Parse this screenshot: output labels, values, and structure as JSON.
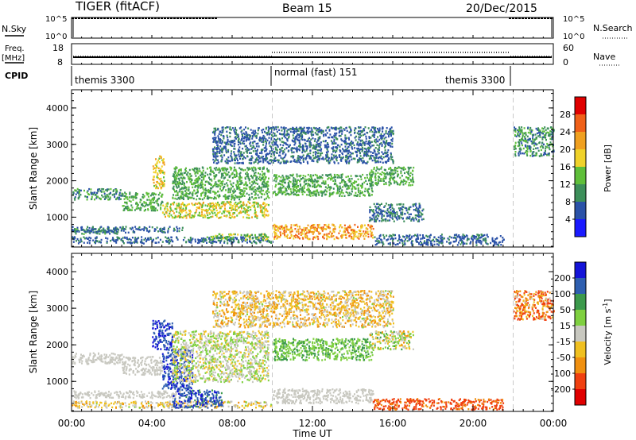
{
  "header": {
    "title": "TIGER (fitACF)",
    "beam": "Beam 15",
    "date": "20/Dec/2015"
  },
  "top_panels": {
    "nsky": {
      "label": "N.Sky",
      "ticks": [
        "10^5",
        "10^0"
      ],
      "right_ticks": [
        "10^5",
        "10^0"
      ],
      "right_label": "N.Search"
    },
    "freq": {
      "label": "Freq.",
      "unit": "[MHz]",
      "ticks": [
        "18",
        "8"
      ],
      "right_ticks": [
        "60",
        "0"
      ],
      "right_label": "Nave"
    },
    "cpid": {
      "label": "CPID",
      "modes": [
        {
          "name": "themis 3300",
          "start": 0,
          "end": 10
        },
        {
          "name": "normal (fast) 151",
          "start": 10,
          "end": 22
        },
        {
          "name": "themis 3300",
          "start": 22,
          "end": 24
        }
      ]
    }
  },
  "x_axis": {
    "ticks": [
      "00:00",
      "04:00",
      "08:00",
      "12:00",
      "16:00",
      "20:00",
      "00:00"
    ],
    "label": "Time UT"
  },
  "colorbars": {
    "power": {
      "label": "Power [dB]",
      "ticks": [
        "4",
        "8",
        "12",
        "16",
        "20",
        "24",
        "28"
      ],
      "colors": [
        "#1a1aff",
        "#2b52a8",
        "#3d8f5a",
        "#5fbf3a",
        "#f0d22a",
        "#f0a020",
        "#f06018",
        "#e00000"
      ]
    },
    "velocity": {
      "label_prefix": "Velocity [m s",
      "label_sup": "-1",
      "label_suffix": "]",
      "ticks": [
        "200",
        "100",
        "50",
        "15",
        "-15",
        "-50",
        "-100",
        "-200"
      ],
      "colors": [
        "#1414d8",
        "#2e5fb0",
        "#3c9a4c",
        "#7fd040",
        "#c8c8c0",
        "#f0c020",
        "#f09010",
        "#f04010",
        "#e00000"
      ]
    }
  },
  "chart_data": [
    {
      "type": "heatmap",
      "title": "Power",
      "ylabel": "Slant Range [km]",
      "xlabel": "Time UT",
      "x_range_hours": [
        0,
        24
      ],
      "ylim": [
        180,
        4500
      ],
      "yticks": [
        1000,
        2000,
        3000,
        4000
      ],
      "colorbar_ticks": [
        4,
        8,
        12,
        16,
        20,
        24,
        28
      ],
      "mode_change_lines_hours": [
        10,
        22
      ],
      "scatter_bands": [
        {
          "t_start": 0.0,
          "t_end": 10.0,
          "r_start": 300,
          "r_end": 480,
          "power": [
            4,
            10
          ]
        },
        {
          "t_start": 0.0,
          "t_end": 2.3,
          "r_start": 560,
          "r_end": 740,
          "power": [
            6,
            14
          ]
        },
        {
          "t_start": 0.0,
          "t_end": 5.5,
          "r_start": 600,
          "r_end": 760,
          "power": [
            4,
            10
          ]
        },
        {
          "t_start": 0.0,
          "t_end": 2.5,
          "r_start": 1500,
          "r_end": 1800,
          "power": [
            6,
            14
          ]
        },
        {
          "t_start": 2.5,
          "t_end": 4.5,
          "r_start": 1200,
          "r_end": 1700,
          "power": [
            8,
            16
          ]
        },
        {
          "t_start": 4.0,
          "t_end": 4.6,
          "r_start": 1800,
          "r_end": 2700,
          "power": [
            14,
            24
          ]
        },
        {
          "t_start": 4.5,
          "t_end": 9.8,
          "r_start": 1000,
          "r_end": 1450,
          "power": [
            12,
            22
          ]
        },
        {
          "t_start": 5.0,
          "t_end": 9.8,
          "r_start": 1500,
          "r_end": 2400,
          "power": [
            8,
            16
          ]
        },
        {
          "t_start": 6.5,
          "t_end": 9.8,
          "r_start": 400,
          "r_end": 560,
          "power": [
            10,
            18
          ]
        },
        {
          "t_start": 10.0,
          "t_end": 15.0,
          "r_start": 1600,
          "r_end": 2200,
          "power": [
            8,
            16
          ]
        },
        {
          "t_start": 14.8,
          "t_end": 17.0,
          "r_start": 1900,
          "r_end": 2400,
          "power": [
            8,
            16
          ]
        },
        {
          "t_start": 10.0,
          "t_end": 15.0,
          "r_start": 420,
          "r_end": 820,
          "power": [
            16,
            28
          ]
        },
        {
          "t_start": 14.8,
          "t_end": 17.5,
          "r_start": 900,
          "r_end": 1400,
          "power": [
            4,
            12
          ]
        },
        {
          "t_start": 7.0,
          "t_end": 16.0,
          "r_start": 2500,
          "r_end": 3500,
          "power": [
            4,
            10
          ]
        },
        {
          "t_start": 15.0,
          "t_end": 21.5,
          "r_start": 250,
          "r_end": 550,
          "power": [
            4,
            10
          ]
        },
        {
          "t_start": 22.0,
          "t_end": 24.0,
          "r_start": 2700,
          "r_end": 3500,
          "power": [
            6,
            14
          ]
        }
      ]
    },
    {
      "type": "heatmap",
      "title": "Velocity",
      "ylabel": "Slant Range [km]",
      "xlabel": "Time UT",
      "x_range_hours": [
        0,
        24
      ],
      "ylim": [
        180,
        4500
      ],
      "yticks": [
        1000,
        2000,
        3000,
        4000
      ],
      "colorbar_ticks": [
        200,
        100,
        50,
        15,
        -15,
        -50,
        -100,
        -200
      ],
      "mode_change_lines_hours": [
        10,
        22
      ],
      "scatter_bands": [
        {
          "t_start": 0.0,
          "t_end": 10.0,
          "r_start": 300,
          "r_end": 480,
          "velocity": [
            -60,
            20
          ]
        },
        {
          "t_start": 0.0,
          "t_end": 5.5,
          "r_start": 560,
          "r_end": 760,
          "velocity": [
            -10,
            10
          ]
        },
        {
          "t_start": 0.0,
          "t_end": 2.5,
          "r_start": 1500,
          "r_end": 1800,
          "velocity": [
            -10,
            10
          ]
        },
        {
          "t_start": 2.5,
          "t_end": 4.5,
          "r_start": 1200,
          "r_end": 1700,
          "velocity": [
            -10,
            10
          ]
        },
        {
          "t_start": 4.0,
          "t_end": 5.0,
          "r_start": 1900,
          "r_end": 2700,
          "velocity": [
            150,
            250
          ]
        },
        {
          "t_start": 4.5,
          "t_end": 6.0,
          "r_start": 800,
          "r_end": 1900,
          "velocity": [
            120,
            250
          ]
        },
        {
          "t_start": 5.0,
          "t_end": 7.5,
          "r_start": 300,
          "r_end": 800,
          "velocity": [
            80,
            250
          ]
        },
        {
          "t_start": 5.0,
          "t_end": 9.8,
          "r_start": 1000,
          "r_end": 2400,
          "velocity": [
            -30,
            40
          ]
        },
        {
          "t_start": 10.0,
          "t_end": 15.0,
          "r_start": 1600,
          "r_end": 2200,
          "velocity": [
            20,
            70
          ]
        },
        {
          "t_start": 14.8,
          "t_end": 17.0,
          "r_start": 1900,
          "r_end": 2400,
          "velocity": [
            -60,
            60
          ]
        },
        {
          "t_start": 10.0,
          "t_end": 15.0,
          "r_start": 420,
          "r_end": 820,
          "velocity": [
            -10,
            10
          ]
        },
        {
          "t_start": 15.0,
          "t_end": 21.5,
          "r_start": 250,
          "r_end": 550,
          "velocity": [
            -200,
            -60
          ]
        },
        {
          "t_start": 7.0,
          "t_end": 16.0,
          "r_start": 2500,
          "r_end": 3500,
          "velocity": [
            -80,
            20
          ]
        },
        {
          "t_start": 22.0,
          "t_end": 24.0,
          "r_start": 2700,
          "r_end": 3500,
          "velocity": [
            -200,
            0
          ]
        }
      ]
    }
  ]
}
